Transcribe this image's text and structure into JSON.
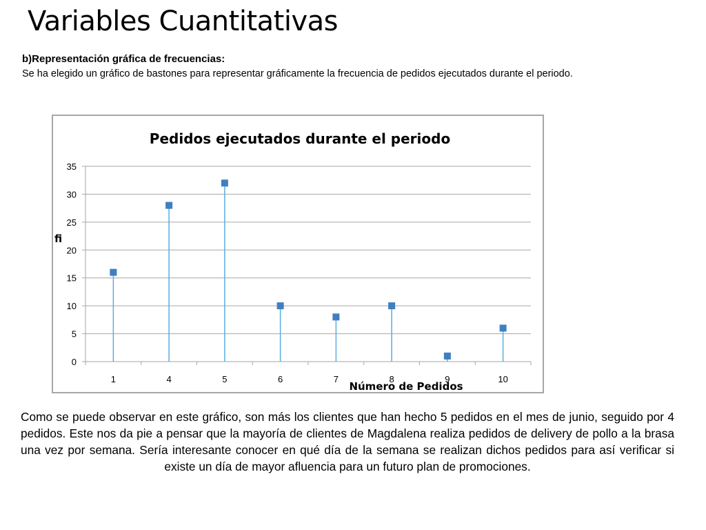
{
  "slide": {
    "title": "Variables Cuantitativas",
    "subtitle": "b)Representación gráfica de frecuencias:",
    "intro": "Se ha elegido un gráfico de bastones para representar gráficamente la frecuencia de pedidos ejecutados durante el periodo.",
    "conclusion": "Como se puede observar en este gráfico, son más los clientes que han hecho 5 pedidos en el mes de junio, seguido por 4 pedidos. Este nos da pie a pensar que la mayoría de clientes de Magdalena realiza pedidos de delivery de pollo a la brasa una vez por semana. Sería interesante conocer en qué día de la semana se realizan dichos pedidos para así verificar si existe un día de mayor afluencia para un futuro plan de promociones."
  },
  "chart_data": {
    "type": "scatter",
    "style": "stem",
    "title": "Pedidos ejecutados durante el periodo",
    "xlabel": "Número de Pedidos",
    "ylabel": "fi",
    "categories": [
      "1",
      "4",
      "5",
      "6",
      "7",
      "8",
      "9",
      "10"
    ],
    "values": [
      16,
      28,
      32,
      10,
      8,
      10,
      1,
      6
    ],
    "ylim": [
      0,
      35
    ],
    "yticks": [
      0,
      5,
      10,
      15,
      20,
      25,
      30,
      35
    ],
    "grid": true,
    "legend": "none",
    "colors": {
      "stem": "#5aaee0",
      "marker": "#3f7fc1",
      "grid": "#a6a6a6",
      "border": "#a6a6a6"
    }
  }
}
